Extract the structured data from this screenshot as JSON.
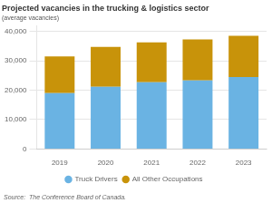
{
  "chart_data": {
    "type": "bar",
    "title": "Projected vacancies in the trucking & logistics sector",
    "subtitle": "(average vacancies)",
    "annotations": [
      "Source:  The Conference Board of Canada."
    ],
    "categories": [
      "2019",
      "2020",
      "2021",
      "2022",
      "2023"
    ],
    "series": [
      {
        "name": "Truck Drivers",
        "color": "#6ab3e3",
        "values": [
          19000,
          21200,
          22700,
          23300,
          24500
        ]
      },
      {
        "name": "All Other Occupations",
        "color": "#c8930a",
        "values": [
          12500,
          13500,
          13600,
          14000,
          14000
        ]
      }
    ],
    "stacked": true,
    "ylim": [
      0,
      42000
    ],
    "yticks": [
      0,
      {
        "value": 10000,
        "label": "10,000"
      },
      {
        "value": 20000,
        "label": "20,000"
      },
      {
        "value": 30000,
        "label": "30,000"
      },
      {
        "value": 40000,
        "label": "40,000"
      }
    ],
    "grid": true,
    "legend": "bottom"
  }
}
